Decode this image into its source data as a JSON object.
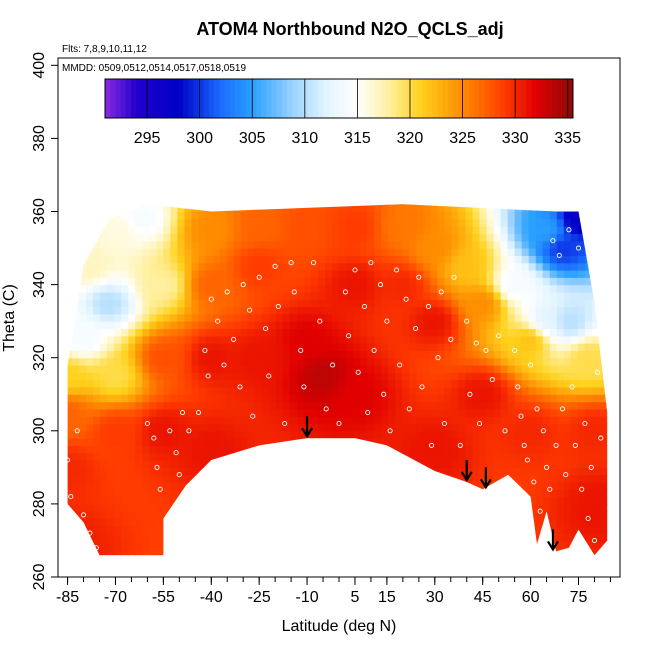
{
  "chart_data": {
    "type": "heatmap",
    "title": "ATOM4 Northbound N2O_QCLS_adj",
    "flights_label": "Flts: 7,8,9,10,11,12",
    "dates_label": "MMDD: 0509,0512,0514,0517,0518,0519",
    "xlabel": "Latitude (deg N)",
    "ylabel": "Theta (C)",
    "xlim": [
      -88,
      88
    ],
    "ylim": [
      260,
      402
    ],
    "x_ticks": [
      -85,
      -70,
      -55,
      -40,
      -25,
      -10,
      5,
      15,
      30,
      45,
      60,
      75
    ],
    "y_ticks": [
      260,
      280,
      300,
      320,
      340,
      360,
      380,
      400
    ],
    "colorbar": {
      "min": 291,
      "max": 335.5,
      "ticks": [
        295,
        300,
        305,
        310,
        315,
        320,
        325,
        330,
        335
      ],
      "stops": [
        {
          "v": 291,
          "c": "#8a2be2"
        },
        {
          "v": 294,
          "c": "#2200cc"
        },
        {
          "v": 298,
          "c": "#0000c8"
        },
        {
          "v": 302,
          "c": "#1a6cff"
        },
        {
          "v": 305,
          "c": "#2aa0ff"
        },
        {
          "v": 309,
          "c": "#9fd4ff"
        },
        {
          "v": 312,
          "c": "#e2f4ff"
        },
        {
          "v": 315,
          "c": "#ffffff"
        },
        {
          "v": 318,
          "c": "#fff0a0"
        },
        {
          "v": 321,
          "c": "#ffd21e"
        },
        {
          "v": 325,
          "c": "#ff8c00"
        },
        {
          "v": 329,
          "c": "#ff3b00"
        },
        {
          "v": 332,
          "c": "#e00000"
        },
        {
          "v": 335.5,
          "c": "#8c0a0a"
        }
      ]
    },
    "field_anchors": [
      {
        "lat": -85,
        "theta": 270,
        "val": 330.5
      },
      {
        "lat": -85,
        "theta": 290,
        "val": 330
      },
      {
        "lat": -85,
        "theta": 305,
        "val": 327
      },
      {
        "lat": -85,
        "theta": 315,
        "val": 321
      },
      {
        "lat": -80,
        "theta": 325,
        "val": 314
      },
      {
        "lat": -78,
        "theta": 345,
        "val": 317
      },
      {
        "lat": -72,
        "theta": 335,
        "val": 310
      },
      {
        "lat": -70,
        "theta": 315,
        "val": 320
      },
      {
        "lat": -70,
        "theta": 300,
        "val": 329
      },
      {
        "lat": -68,
        "theta": 355,
        "val": 316
      },
      {
        "lat": -62,
        "theta": 358,
        "val": 314
      },
      {
        "lat": -55,
        "theta": 340,
        "val": 318
      },
      {
        "lat": -55,
        "theta": 320,
        "val": 328
      },
      {
        "lat": -55,
        "theta": 300,
        "val": 331
      },
      {
        "lat": -40,
        "theta": 355,
        "val": 325
      },
      {
        "lat": -40,
        "theta": 340,
        "val": 327
      },
      {
        "lat": -40,
        "theta": 320,
        "val": 331
      },
      {
        "lat": -40,
        "theta": 295,
        "val": 331
      },
      {
        "lat": -25,
        "theta": 356,
        "val": 327
      },
      {
        "lat": -25,
        "theta": 345,
        "val": 329
      },
      {
        "lat": -25,
        "theta": 320,
        "val": 331
      },
      {
        "lat": -10,
        "theta": 356,
        "val": 328
      },
      {
        "lat": -10,
        "theta": 325,
        "val": 332
      },
      {
        "lat": -5,
        "theta": 315,
        "val": 333.5
      },
      {
        "lat": 5,
        "theta": 356,
        "val": 329
      },
      {
        "lat": 5,
        "theta": 340,
        "val": 331
      },
      {
        "lat": 5,
        "theta": 310,
        "val": 332
      },
      {
        "lat": 20,
        "theta": 356,
        "val": 326
      },
      {
        "lat": 20,
        "theta": 340,
        "val": 330
      },
      {
        "lat": 30,
        "theta": 350,
        "val": 325
      },
      {
        "lat": 30,
        "theta": 330,
        "val": 331
      },
      {
        "lat": 30,
        "theta": 295,
        "val": 331
      },
      {
        "lat": 40,
        "theta": 345,
        "val": 322
      },
      {
        "lat": 45,
        "theta": 335,
        "val": 325
      },
      {
        "lat": 45,
        "theta": 310,
        "val": 331
      },
      {
        "lat": 55,
        "theta": 340,
        "val": 314
      },
      {
        "lat": 60,
        "theta": 325,
        "val": 322
      },
      {
        "lat": 60,
        "theta": 300,
        "val": 330
      },
      {
        "lat": 65,
        "theta": 355,
        "val": 305
      },
      {
        "lat": 65,
        "theta": 330,
        "val": 312
      },
      {
        "lat": 70,
        "theta": 350,
        "val": 300
      },
      {
        "lat": 72,
        "theta": 330,
        "val": 310
      },
      {
        "lat": 75,
        "theta": 358,
        "val": 297
      },
      {
        "lat": 78,
        "theta": 320,
        "val": 320
      },
      {
        "lat": 80,
        "theta": 300,
        "val": 330
      },
      {
        "lat": 82,
        "theta": 280,
        "val": 331
      }
    ],
    "domain_top": [
      {
        "lat": -85,
        "theta": 318
      },
      {
        "lat": -80,
        "theta": 345
      },
      {
        "lat": -72,
        "theta": 358
      },
      {
        "lat": -60,
        "theta": 362
      },
      {
        "lat": -40,
        "theta": 360
      },
      {
        "lat": 20,
        "theta": 362
      },
      {
        "lat": 68,
        "theta": 360
      },
      {
        "lat": 75,
        "theta": 360
      },
      {
        "lat": 78,
        "theta": 345
      },
      {
        "lat": 80,
        "theta": 335
      },
      {
        "lat": 82,
        "theta": 320
      },
      {
        "lat": 84,
        "theta": 305
      }
    ],
    "domain_bottom": [
      {
        "lat": -85,
        "theta": 280
      },
      {
        "lat": -80,
        "theta": 275
      },
      {
        "lat": -75,
        "theta": 266
      },
      {
        "lat": -55,
        "theta": 266
      },
      {
        "lat": -55,
        "theta": 276
      },
      {
        "lat": -48,
        "theta": 285
      },
      {
        "lat": -40,
        "theta": 292
      },
      {
        "lat": -25,
        "theta": 296
      },
      {
        "lat": -10,
        "theta": 298
      },
      {
        "lat": 5,
        "theta": 298
      },
      {
        "lat": 15,
        "theta": 296
      },
      {
        "lat": 30,
        "theta": 289
      },
      {
        "lat": 40,
        "theta": 286
      },
      {
        "lat": 45,
        "theta": 284
      },
      {
        "lat": 53,
        "theta": 288
      },
      {
        "lat": 60,
        "theta": 282
      },
      {
        "lat": 62,
        "theta": 269
      },
      {
        "lat": 65,
        "theta": 278
      },
      {
        "lat": 68,
        "theta": 267
      },
      {
        "lat": 72,
        "theta": 268
      },
      {
        "lat": 75,
        "theta": 273
      },
      {
        "lat": 80,
        "theta": 266
      },
      {
        "lat": 84,
        "theta": 270
      }
    ],
    "arrows": [
      {
        "lat": -10,
        "theta": 298
      },
      {
        "lat": 40,
        "theta": 286
      },
      {
        "lat": 46,
        "theta": 284
      },
      {
        "lat": 67,
        "theta": 267
      }
    ],
    "sample_points": [
      {
        "lat": -85,
        "theta": 292
      },
      {
        "lat": -84,
        "theta": 282
      },
      {
        "lat": -82,
        "theta": 300
      },
      {
        "lat": -80,
        "theta": 277
      },
      {
        "lat": -78,
        "theta": 272
      },
      {
        "lat": -76,
        "theta": 268
      },
      {
        "lat": -60,
        "theta": 302
      },
      {
        "lat": -58,
        "theta": 298
      },
      {
        "lat": -57,
        "theta": 290
      },
      {
        "lat": -56,
        "theta": 284
      },
      {
        "lat": -53,
        "theta": 300
      },
      {
        "lat": -51,
        "theta": 294
      },
      {
        "lat": -50,
        "theta": 288
      },
      {
        "lat": -49,
        "theta": 305
      },
      {
        "lat": -47,
        "theta": 300
      },
      {
        "lat": -44,
        "theta": 305
      },
      {
        "lat": -42,
        "theta": 322
      },
      {
        "lat": -41,
        "theta": 315
      },
      {
        "lat": -40,
        "theta": 336
      },
      {
        "lat": -38,
        "theta": 330
      },
      {
        "lat": -36,
        "theta": 318
      },
      {
        "lat": -35,
        "theta": 338
      },
      {
        "lat": -33,
        "theta": 325
      },
      {
        "lat": -31,
        "theta": 312
      },
      {
        "lat": -30,
        "theta": 340
      },
      {
        "lat": -28,
        "theta": 333
      },
      {
        "lat": -27,
        "theta": 304
      },
      {
        "lat": -25,
        "theta": 342
      },
      {
        "lat": -23,
        "theta": 328
      },
      {
        "lat": -22,
        "theta": 315
      },
      {
        "lat": -20,
        "theta": 345
      },
      {
        "lat": -19,
        "theta": 334
      },
      {
        "lat": -17,
        "theta": 302
      },
      {
        "lat": -15,
        "theta": 346
      },
      {
        "lat": -14,
        "theta": 338
      },
      {
        "lat": -12,
        "theta": 322
      },
      {
        "lat": -11,
        "theta": 312
      },
      {
        "lat": -8,
        "theta": 346
      },
      {
        "lat": -6,
        "theta": 330
      },
      {
        "lat": -4,
        "theta": 306
      },
      {
        "lat": -2,
        "theta": 318
      },
      {
        "lat": 0,
        "theta": 302
      },
      {
        "lat": 2,
        "theta": 338
      },
      {
        "lat": 3,
        "theta": 326
      },
      {
        "lat": 5,
        "theta": 344
      },
      {
        "lat": 6,
        "theta": 316
      },
      {
        "lat": 8,
        "theta": 334
      },
      {
        "lat": 9,
        "theta": 305
      },
      {
        "lat": 10,
        "theta": 346
      },
      {
        "lat": 11,
        "theta": 322
      },
      {
        "lat": 13,
        "theta": 340
      },
      {
        "lat": 14,
        "theta": 310
      },
      {
        "lat": 15,
        "theta": 330
      },
      {
        "lat": 16,
        "theta": 300
      },
      {
        "lat": 18,
        "theta": 344
      },
      {
        "lat": 19,
        "theta": 318
      },
      {
        "lat": 21,
        "theta": 336
      },
      {
        "lat": 22,
        "theta": 306
      },
      {
        "lat": 24,
        "theta": 328
      },
      {
        "lat": 25,
        "theta": 342
      },
      {
        "lat": 26,
        "theta": 312
      },
      {
        "lat": 28,
        "theta": 334
      },
      {
        "lat": 29,
        "theta": 296
      },
      {
        "lat": 31,
        "theta": 320
      },
      {
        "lat": 32,
        "theta": 338
      },
      {
        "lat": 33,
        "theta": 302
      },
      {
        "lat": 35,
        "theta": 325
      },
      {
        "lat": 36,
        "theta": 342
      },
      {
        "lat": 38,
        "theta": 296
      },
      {
        "lat": 40,
        "theta": 330
      },
      {
        "lat": 41,
        "theta": 310
      },
      {
        "lat": 43,
        "theta": 324
      },
      {
        "lat": 44,
        "theta": 302
      },
      {
        "lat": 46,
        "theta": 322
      },
      {
        "lat": 48,
        "theta": 314
      },
      {
        "lat": 50,
        "theta": 326
      },
      {
        "lat": 52,
        "theta": 300
      },
      {
        "lat": 55,
        "theta": 322
      },
      {
        "lat": 56,
        "theta": 312
      },
      {
        "lat": 57,
        "theta": 304
      },
      {
        "lat": 58,
        "theta": 296
      },
      {
        "lat": 59,
        "theta": 292
      },
      {
        "lat": 60,
        "theta": 318
      },
      {
        "lat": 61,
        "theta": 286
      },
      {
        "lat": 62,
        "theta": 306
      },
      {
        "lat": 63,
        "theta": 278
      },
      {
        "lat": 64,
        "theta": 300
      },
      {
        "lat": 65,
        "theta": 290
      },
      {
        "lat": 66,
        "theta": 284
      },
      {
        "lat": 67,
        "theta": 352
      },
      {
        "lat": 68,
        "theta": 296
      },
      {
        "lat": 69,
        "theta": 348
      },
      {
        "lat": 70,
        "theta": 306
      },
      {
        "lat": 71,
        "theta": 288
      },
      {
        "lat": 72,
        "theta": 355
      },
      {
        "lat": 73,
        "theta": 312
      },
      {
        "lat": 74,
        "theta": 296
      },
      {
        "lat": 75,
        "theta": 350
      },
      {
        "lat": 76,
        "theta": 284
      },
      {
        "lat": 77,
        "theta": 302
      },
      {
        "lat": 78,
        "theta": 276
      },
      {
        "lat": 79,
        "theta": 290
      },
      {
        "lat": 80,
        "theta": 270
      },
      {
        "lat": 81,
        "theta": 316
      },
      {
        "lat": 82,
        "theta": 298
      }
    ]
  }
}
